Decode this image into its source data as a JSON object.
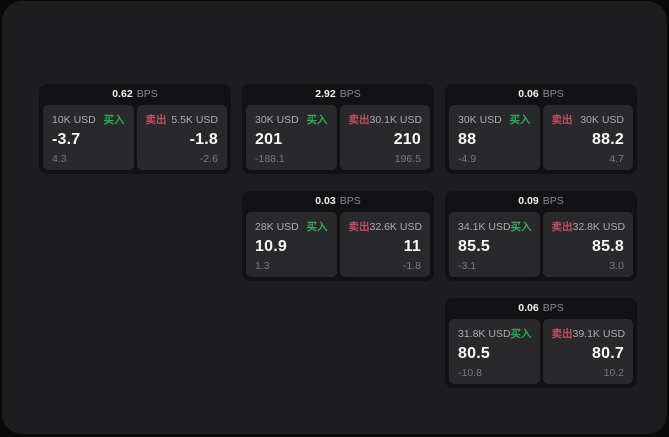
{
  "labels": {
    "buy": "买入",
    "sell": "卖出",
    "bps_unit": "BPS"
  },
  "colors": {
    "page_background": "#1d1d1f",
    "card_background": "#121214",
    "panel_background": "#29292c",
    "buy_green": "#35a85c",
    "sell_red": "#c04e67",
    "text_primary": "#f7f7f8",
    "text_secondary": "#ababb0",
    "text_muted": "#7b7b80"
  },
  "cards": [
    {
      "bps": "0.62",
      "buy": {
        "amount": "10K USD",
        "price": "-3.7",
        "change": "4.3"
      },
      "sell": {
        "amount": "5.5K USD",
        "price": "-1.8",
        "change": "-2.6"
      }
    },
    {
      "bps": "2.92",
      "buy": {
        "amount": "30K USD",
        "price": "201",
        "change": "-188.1"
      },
      "sell": {
        "amount": "30.1K USD",
        "price": "210",
        "change": "196.5"
      }
    },
    {
      "bps": "0.06",
      "buy": {
        "amount": "30K USD",
        "price": "88",
        "change": "-4.9"
      },
      "sell": {
        "amount": "30K USD",
        "price": "88.2",
        "change": "4.7"
      }
    },
    {
      "bps": "0.03",
      "buy": {
        "amount": "28K USD",
        "price": "10.9",
        "change": "1.3"
      },
      "sell": {
        "amount": "32.6K USD",
        "price": "11",
        "change": "-1.8"
      }
    },
    {
      "bps": "0.09",
      "buy": {
        "amount": "34.1K USD",
        "price": "85.5",
        "change": "-3.1"
      },
      "sell": {
        "amount": "32.8K USD",
        "price": "85.8",
        "change": "3.0"
      }
    },
    {
      "bps": "0.06",
      "buy": {
        "amount": "31.8K USD",
        "price": "80.5",
        "change": "-10.8"
      },
      "sell": {
        "amount": "39.1K USD",
        "price": "80.7",
        "change": "10.2"
      }
    }
  ]
}
